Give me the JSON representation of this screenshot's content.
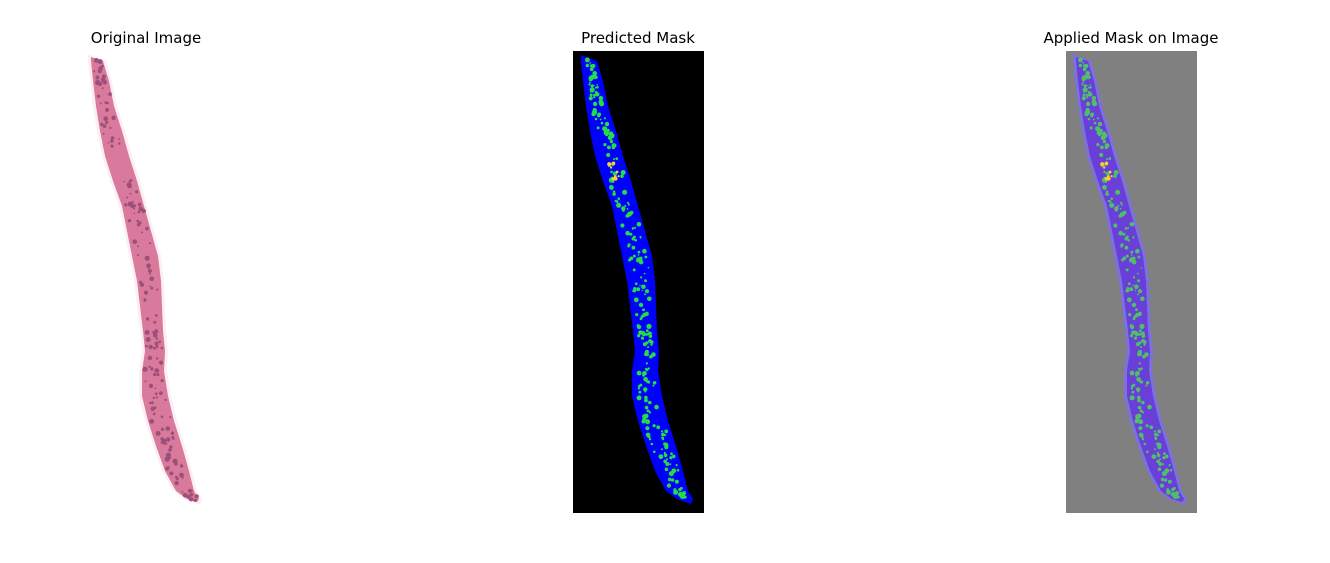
{
  "figure": {
    "panels": [
      {
        "title": "Original Image"
      },
      {
        "title": "Predicted Mask"
      },
      {
        "title": "Applied Mask on Image"
      }
    ]
  },
  "colors": {
    "tissue_stain": "#d97a9c",
    "tissue_dark": "#9c4f78",
    "mask_background": "#000000",
    "mask_region": "#0000ff",
    "mask_highlight": "#22dd44",
    "mask_hot": "#ffcc33",
    "overlay_background": "#808080",
    "overlay_region": "#7a6cff"
  }
}
